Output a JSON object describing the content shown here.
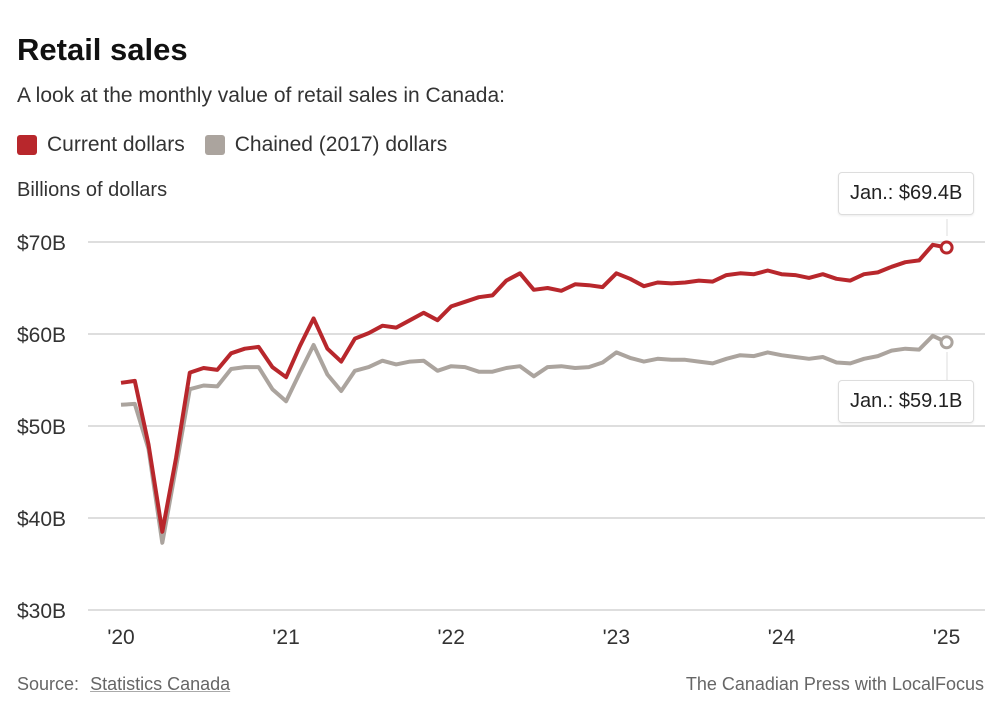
{
  "title": "Retail sales",
  "subtitle": "A look at the monthly value of retail sales in Canada:",
  "footer": {
    "source_label": "Source:",
    "source_link": "Statistics Canada",
    "credit": "The Canadian Press with LocalFocus"
  },
  "chart_data": {
    "type": "line",
    "title": "Retail sales",
    "ylabel": "Billions of dollars",
    "xlabel": "",
    "ylim": [
      30,
      70
    ],
    "yticks": [
      {
        "v": 70,
        "label": "$70B"
      },
      {
        "v": 60,
        "label": "$60B"
      },
      {
        "v": 50,
        "label": "$50B"
      },
      {
        "v": 40,
        "label": "$40B"
      },
      {
        "v": 30,
        "label": "$30B"
      }
    ],
    "xticks": [
      {
        "i": 0,
        "label": "'20"
      },
      {
        "i": 12,
        "label": "'21"
      },
      {
        "i": 24,
        "label": "'22"
      },
      {
        "i": 36,
        "label": "'23"
      },
      {
        "i": 48,
        "label": "'24"
      },
      {
        "i": 60,
        "label": "'25"
      }
    ],
    "x_start": "2020-01",
    "x_end": "2025-01",
    "grid": true,
    "legend_position": "top-left",
    "series": [
      {
        "name": "Current dollars",
        "color": "#b8272c",
        "annotation": "Jan.: $69.4B",
        "values": [
          54.7,
          54.9,
          48.0,
          38.5,
          46.5,
          55.8,
          56.3,
          56.1,
          57.9,
          58.4,
          58.6,
          56.4,
          55.3,
          58.7,
          61.7,
          58.4,
          57.0,
          59.5,
          60.1,
          60.9,
          60.7,
          61.5,
          62.3,
          61.5,
          63.0,
          63.5,
          64.0,
          64.2,
          65.8,
          66.6,
          64.8,
          65.0,
          64.7,
          65.4,
          65.3,
          65.1,
          66.6,
          66.0,
          65.2,
          65.6,
          65.5,
          65.6,
          65.8,
          65.7,
          66.4,
          66.6,
          66.5,
          66.9,
          66.5,
          66.4,
          66.1,
          66.5,
          66.0,
          65.8,
          66.5,
          66.7,
          67.3,
          67.8,
          68.0,
          69.7,
          69.4
        ]
      },
      {
        "name": "Chained (2017) dollars",
        "color": "#aba49e",
        "annotation": "Jan.: $59.1B",
        "values": [
          52.3,
          52.4,
          47.5,
          37.3,
          45.5,
          54.0,
          54.4,
          54.3,
          56.2,
          56.4,
          56.4,
          54.0,
          52.7,
          55.8,
          58.8,
          55.6,
          53.8,
          56.0,
          56.4,
          57.1,
          56.7,
          57.0,
          57.1,
          56.0,
          56.5,
          56.4,
          55.9,
          55.9,
          56.3,
          56.5,
          55.4,
          56.4,
          56.5,
          56.3,
          56.4,
          56.9,
          58.0,
          57.4,
          57.0,
          57.3,
          57.2,
          57.2,
          57.0,
          56.8,
          57.3,
          57.7,
          57.6,
          58.0,
          57.7,
          57.5,
          57.3,
          57.5,
          56.9,
          56.8,
          57.3,
          57.6,
          58.2,
          58.4,
          58.3,
          59.8,
          59.1
        ]
      }
    ]
  }
}
